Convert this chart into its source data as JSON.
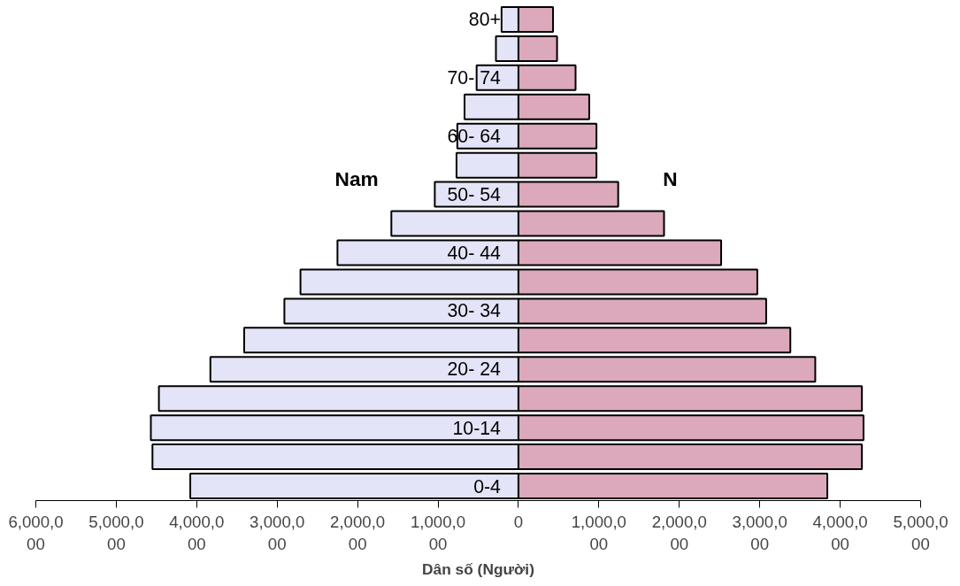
{
  "chart_data": {
    "type": "bar",
    "orientation": "horizontal",
    "stacked": true,
    "xlabel": "Dân số (Người)",
    "categories": [
      "80+",
      null,
      "70- 74",
      null,
      "60- 64",
      null,
      "50- 54",
      null,
      "40- 44",
      null,
      "30- 34",
      null,
      "20- 24",
      null,
      "10-14",
      null,
      "0-4"
    ],
    "series": [
      {
        "name": "Nam",
        "color": "#e4e4f8",
        "values": [
          -210000,
          -280000,
          -520000,
          -670000,
          -760000,
          -770000,
          -1040000,
          -1580000,
          -2250000,
          -2710000,
          -2910000,
          -3410000,
          -3830000,
          -4470000,
          -4570000,
          -4550000,
          -4080000
        ]
      },
      {
        "name": "N",
        "color": "#dca8bc",
        "values": [
          430000,
          480000,
          710000,
          880000,
          970000,
          970000,
          1240000,
          1810000,
          2520000,
          2970000,
          3080000,
          3380000,
          3690000,
          4270000,
          4290000,
          4270000,
          3840000
        ]
      }
    ],
    "xlim": [
      -6000000,
      5000000
    ],
    "xticks": [
      {
        "value": -6000000,
        "label": "6,000,000"
      },
      {
        "value": -5000000,
        "label": "5,000,000"
      },
      {
        "value": -4000000,
        "label": "4,000,000"
      },
      {
        "value": -3000000,
        "label": "3,000,000"
      },
      {
        "value": -2000000,
        "label": "2,000,000"
      },
      {
        "value": -1000000,
        "label": "1,000,000"
      },
      {
        "value": 0,
        "label": "0"
      },
      {
        "value": 1000000,
        "label": "1,000,000"
      },
      {
        "value": 2000000,
        "label": "2,000,000"
      },
      {
        "value": 3000000,
        "label": "3,000,000"
      },
      {
        "value": 4000000,
        "label": "4,000,000"
      },
      {
        "value": 5000000,
        "label": "5,000,000"
      }
    ],
    "grid": false,
    "legend": false
  }
}
